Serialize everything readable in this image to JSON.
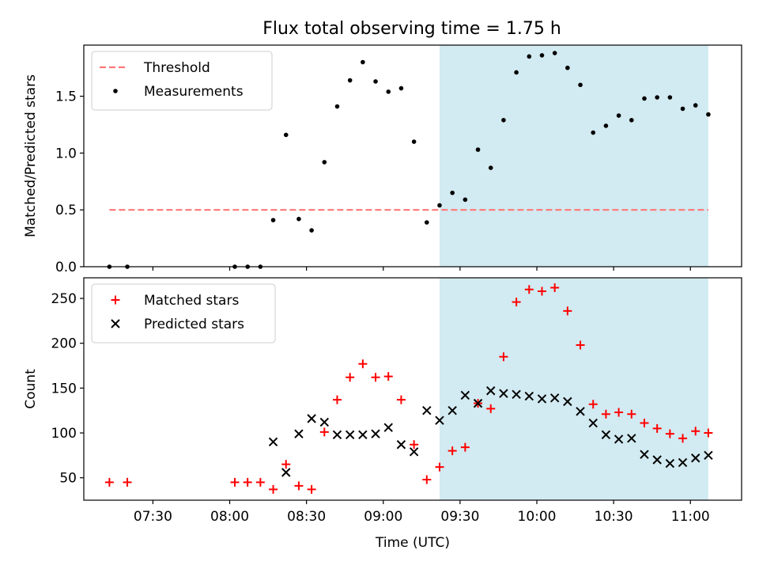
{
  "title": "Flux total observing time = 1.75 h",
  "colors": {
    "threshold": "#ff7777",
    "measurement": "#000000",
    "matched": "#ff0000",
    "predicted": "#000000",
    "observing_window": "#add8e6"
  },
  "chart_data": [
    {
      "type": "scatter",
      "name": "ratio-panel",
      "ylabel": "Matched/Predicted stars",
      "ylim": [
        0,
        1.95
      ],
      "yticks": [
        "0.0",
        "0.5",
        "1.0",
        "1.5"
      ],
      "ytick_values": [
        0,
        0.5,
        1.0,
        1.5
      ],
      "xlim": [
        "07:03",
        "11:20"
      ],
      "legend": {
        "position": "top-left"
      },
      "threshold": {
        "label": "Threshold",
        "value": 0.5,
        "x": [
          "07:13",
          "11:07"
        ]
      },
      "shaded_region": [
        "09:22",
        "11:07"
      ],
      "series": [
        {
          "name": "Measurements",
          "marker": "dot",
          "x": [
            "07:13",
            "07:20",
            "08:02",
            "08:07",
            "08:12",
            "08:17",
            "08:22",
            "08:27",
            "08:32",
            "08:37",
            "08:42",
            "08:47",
            "08:52",
            "08:57",
            "09:02",
            "09:07",
            "09:12",
            "09:17",
            "09:22",
            "09:27",
            "09:32",
            "09:37",
            "09:42",
            "09:47",
            "09:52",
            "09:57",
            "10:02",
            "10:07",
            "10:12",
            "10:17",
            "10:22",
            "10:27",
            "10:32",
            "10:37",
            "10:42",
            "10:47",
            "10:52",
            "10:57",
            "11:02",
            "11:07"
          ],
          "y": [
            0,
            0,
            0,
            0,
            0,
            0.41,
            1.16,
            0.42,
            0.32,
            0.92,
            1.41,
            1.64,
            1.8,
            1.63,
            1.54,
            1.57,
            1.1,
            0.39,
            0.54,
            0.65,
            0.59,
            1.03,
            0.87,
            1.29,
            1.71,
            1.85,
            1.86,
            1.88,
            1.75,
            1.6,
            1.18,
            1.24,
            1.33,
            1.29,
            1.48,
            1.49,
            1.49,
            1.39,
            1.42,
            1.34
          ]
        }
      ]
    },
    {
      "type": "scatter",
      "name": "count-panel",
      "ylabel": "Count",
      "xlabel": "Time (UTC)",
      "ylim": [
        25,
        273
      ],
      "yticks": [
        "50",
        "100",
        "150",
        "200",
        "250"
      ],
      "ytick_values": [
        50,
        100,
        150,
        200,
        250
      ],
      "xlim": [
        "07:03",
        "11:20"
      ],
      "xticks": [
        "07:30",
        "08:00",
        "08:30",
        "09:00",
        "09:30",
        "10:00",
        "10:30",
        "11:00"
      ],
      "legend": {
        "position": "top-left"
      },
      "shaded_region": [
        "09:22",
        "11:07"
      ],
      "series": [
        {
          "name": "Matched stars",
          "marker": "plus",
          "x": [
            "07:13",
            "07:20",
            "08:02",
            "08:07",
            "08:12",
            "08:17",
            "08:22",
            "08:27",
            "08:32",
            "08:37",
            "08:42",
            "08:47",
            "08:52",
            "08:57",
            "09:02",
            "09:07",
            "09:12",
            "09:17",
            "09:22",
            "09:27",
            "09:32",
            "09:37",
            "09:42",
            "09:47",
            "09:52",
            "09:57",
            "10:02",
            "10:07",
            "10:12",
            "10:17",
            "10:22",
            "10:27",
            "10:32",
            "10:37",
            "10:42",
            "10:47",
            "10:52",
            "10:57",
            "11:02",
            "11:07"
          ],
          "y": [
            45,
            45,
            45,
            45,
            45,
            37,
            65,
            41,
            37,
            101,
            137,
            162,
            177,
            162,
            163,
            137,
            87,
            48,
            62,
            80,
            84,
            133,
            127,
            185,
            246,
            260,
            258,
            262,
            236,
            198,
            132,
            121,
            123,
            121,
            111,
            105,
            99,
            94,
            102,
            100
          ]
        },
        {
          "name": "Predicted stars",
          "marker": "x",
          "x": [
            "08:17",
            "08:22",
            "08:27",
            "08:32",
            "08:37",
            "08:42",
            "08:47",
            "08:52",
            "08:57",
            "09:02",
            "09:07",
            "09:12",
            "09:17",
            "09:22",
            "09:27",
            "09:32",
            "09:37",
            "09:42",
            "09:47",
            "09:52",
            "09:57",
            "10:02",
            "10:07",
            "10:12",
            "10:17",
            "10:22",
            "10:27",
            "10:32",
            "10:37",
            "10:42",
            "10:47",
            "10:52",
            "10:57",
            "11:02",
            "11:07"
          ],
          "y": [
            90,
            56,
            99,
            116,
            112,
            98,
            98,
            98,
            99,
            106,
            87,
            79,
            125,
            114,
            125,
            142,
            133,
            147,
            144,
            143,
            141,
            138,
            139,
            135,
            124,
            111,
            98,
            93,
            94,
            76,
            70,
            66,
            67,
            72,
            75
          ]
        }
      ]
    }
  ]
}
